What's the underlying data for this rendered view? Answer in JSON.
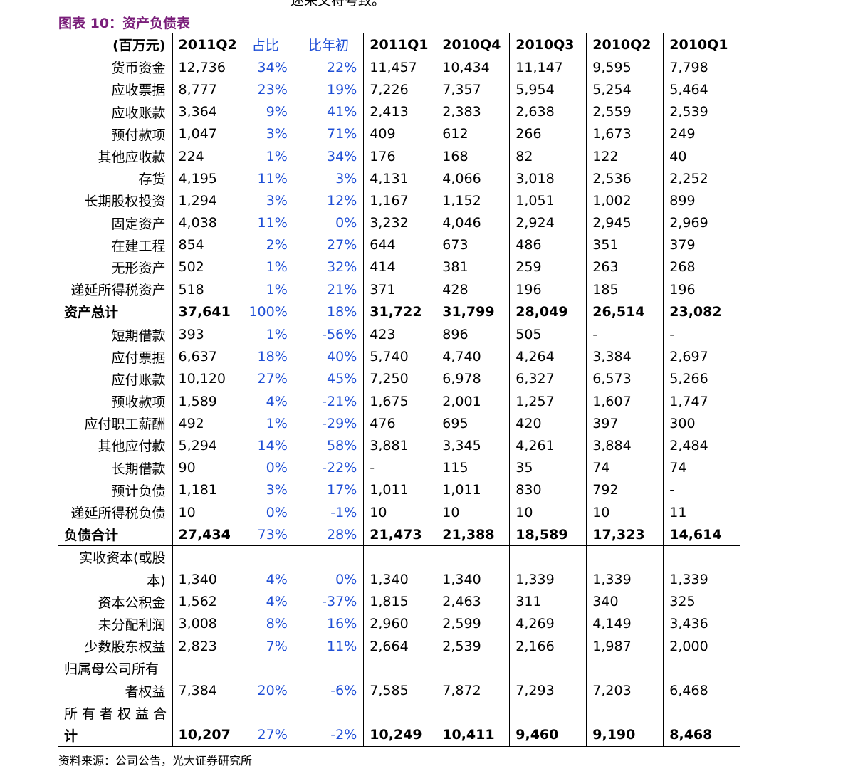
{
  "top_fragment": "述来文符号致。",
  "title": "图表 10：资产负债表",
  "source": "资料来源：公司公告，光大证券研究所",
  "header": [
    "(百万元)",
    "2011Q2",
    "占比",
    "比年初",
    "2011Q1",
    "2010Q4",
    "2010Q3",
    "2010Q2",
    "2010Q1"
  ],
  "rows": [
    [
      "货币资金",
      "12,736",
      "34%",
      "22%",
      "11,457",
      "10,434",
      "11,147",
      "9,595",
      "7,798"
    ],
    [
      "应收票据",
      "8,777",
      "23%",
      "19%",
      "7,226",
      "7,357",
      "5,954",
      "5,254",
      "5,464"
    ],
    [
      "应收账款",
      "3,364",
      "9%",
      "41%",
      "2,413",
      "2,383",
      "2,638",
      "2,559",
      "2,539"
    ],
    [
      "预付款项",
      "1,047",
      "3%",
      "71%",
      "409",
      "612",
      "266",
      "1,673",
      "249"
    ],
    [
      "其他应收款",
      "224",
      "1%",
      "34%",
      "176",
      "168",
      "82",
      "122",
      "40"
    ],
    [
      "存货",
      "4,195",
      "11%",
      "3%",
      "4,131",
      "4,066",
      "3,018",
      "2,536",
      "2,252"
    ],
    [
      "长期股权投资",
      "1,294",
      "3%",
      "12%",
      "1,167",
      "1,152",
      "1,051",
      "1,002",
      "899"
    ],
    [
      "固定资产",
      "4,038",
      "11%",
      "0%",
      "3,232",
      "4,046",
      "2,924",
      "2,945",
      "2,969"
    ],
    [
      "在建工程",
      "854",
      "2%",
      "27%",
      "644",
      "673",
      "486",
      "351",
      "379"
    ],
    [
      "无形资产",
      "502",
      "1%",
      "32%",
      "414",
      "381",
      "259",
      "263",
      "268"
    ],
    [
      "递延所得税资产",
      "518",
      "1%",
      "21%",
      "371",
      "428",
      "196",
      "185",
      "196"
    ],
    [
      "资产总计",
      "37,641",
      "100%",
      "18%",
      "31,722",
      "31,799",
      "28,049",
      "26,514",
      "23,082"
    ],
    [
      "短期借款",
      "393",
      "1%",
      "-56%",
      "423",
      "896",
      "505",
      "-",
      "-"
    ],
    [
      "应付票据",
      "6,637",
      "18%",
      "40%",
      "5,740",
      "4,740",
      "4,264",
      "3,384",
      "2,697"
    ],
    [
      "应付账款",
      "10,120",
      "27%",
      "45%",
      "7,250",
      "6,978",
      "6,327",
      "6,573",
      "5,266"
    ],
    [
      "预收款项",
      "1,589",
      "4%",
      "-21%",
      "1,675",
      "2,001",
      "1,257",
      "1,607",
      "1,747"
    ],
    [
      "应付职工薪酬",
      "492",
      "1%",
      "-29%",
      "476",
      "695",
      "420",
      "397",
      "300"
    ],
    [
      "其他应付款",
      "5,294",
      "14%",
      "58%",
      "3,881",
      "3,345",
      "4,261",
      "3,884",
      "2,484"
    ],
    [
      "长期借款",
      "90",
      "0%",
      "-22%",
      "-",
      "115",
      "35",
      "74",
      "74"
    ],
    [
      "预计负债",
      "1,181",
      "3%",
      "17%",
      "1,011",
      "1,011",
      "830",
      "792",
      "-"
    ],
    [
      "递延所得税负债",
      "10",
      "0%",
      "-1%",
      "10",
      "10",
      "10",
      "10",
      "11"
    ],
    [
      "负债合计",
      "27,434",
      "73%",
      "28%",
      "21,473",
      "21,388",
      "18,589",
      "17,323",
      "14,614"
    ],
    [
      "实收资本(或股",
      "",
      "",
      "",
      "",
      "",
      "",
      "",
      ""
    ],
    [
      "本)",
      "1,340",
      "4%",
      "0%",
      "1,340",
      "1,340",
      "1,339",
      "1,339",
      "1,339"
    ],
    [
      "资本公积金",
      "1,562",
      "4%",
      "-37%",
      "1,815",
      "2,463",
      "311",
      "340",
      "325"
    ],
    [
      "未分配利润",
      "3,008",
      "8%",
      "16%",
      "2,960",
      "2,599",
      "4,269",
      "4,149",
      "3,436"
    ],
    [
      "少数股东权益",
      "2,823",
      "7%",
      "11%",
      "2,664",
      "2,539",
      "2,166",
      "1,987",
      "2,000"
    ],
    [
      "归属母公司所有",
      "",
      "",
      "",
      "",
      "",
      "",
      "",
      ""
    ],
    [
      "者权益",
      "7,384",
      "20%",
      "-6%",
      "7,585",
      "7,872",
      "7,293",
      "7,203",
      "6,468"
    ],
    [
      "所有者权益合",
      "",
      "",
      "",
      "",
      "",
      "",
      "",
      ""
    ],
    [
      "计",
      "10,207",
      "27%",
      "-2%",
      "10,249",
      "10,411",
      "9,460",
      "9,190",
      "8,468"
    ]
  ],
  "colors": {
    "title": "#7a1f7a",
    "percent": "#1f4fd6",
    "text": "#000000"
  }
}
